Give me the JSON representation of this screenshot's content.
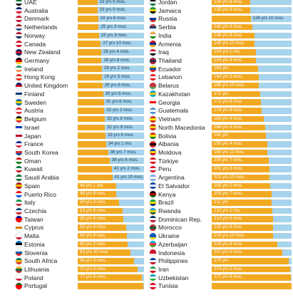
{
  "chart_data": {
    "type": "bar",
    "orientation": "horizontal",
    "value_unit": "years",
    "colors": {
      "progress": "#f2a922",
      "track": "#a7d3ec",
      "label": "#23425a"
    },
    "columns": [
      {
        "rows": [
          {
            "country": "UAE",
            "label": "23 yrs 9 mos.",
            "value": 23.75,
            "flag": [
              "#00732f",
              "#ffffff",
              "#000000"
            ]
          },
          {
            "country": "Australia",
            "label": "23 yrs 9 mos.",
            "value": 23.75,
            "flag": [
              "#012169",
              "#ffffff",
              "#e4002b"
            ]
          },
          {
            "country": "Denmark",
            "label": "24 yrs 6 mos.",
            "value": 24.5,
            "flag": [
              "#c8102e",
              "#ffffff",
              "#c8102e"
            ]
          },
          {
            "country": "Netherlands",
            "label": "25 yrs 3 mos.",
            "value": 25.25,
            "flag": [
              "#ae1c28",
              "#ffffff",
              "#21468b"
            ]
          },
          {
            "country": "Norway",
            "label": "25 yrs 9 mos.",
            "value": 25.75,
            "flag": [
              "#ba0c2f",
              "#ffffff",
              "#00205b"
            ]
          },
          {
            "country": "Canada",
            "label": "27 yrs 10 mos.",
            "value": 27.83,
            "flag": [
              "#d80621",
              "#ffffff",
              "#d80621"
            ]
          },
          {
            "country": "New Zealand",
            "label": "28 yrs 4 mos.",
            "value": 28.33,
            "flag": [
              "#012169",
              "#cc142b",
              "#012169"
            ]
          },
          {
            "country": "Germany",
            "label": "28 yrs 8 mos.",
            "value": 28.67,
            "flag": [
              "#000000",
              "#dd0000",
              "#ffce00"
            ]
          },
          {
            "country": "Ireland",
            "label": "29 yrs 2 mos.",
            "value": 29.17,
            "flag": [
              "#169b62",
              "#ffffff",
              "#ff883e"
            ]
          },
          {
            "country": "Hong Kong",
            "label": "29 yrs 5 mos.",
            "value": 29.42,
            "flag": [
              "#de2910",
              "#ffffff",
              "#de2910"
            ]
          },
          {
            "country": "United Kingdom",
            "label": "29 yrs 9 mos.",
            "value": 29.75,
            "flag": [
              "#012169",
              "#c8102e",
              "#ffffff"
            ]
          },
          {
            "country": "Finland",
            "label": "30 yrs 6 mos.",
            "value": 30.5,
            "flag": [
              "#ffffff",
              "#003580",
              "#ffffff"
            ]
          },
          {
            "country": "Sweden",
            "label": "31 yrs 6 mos.",
            "value": 31.5,
            "flag": [
              "#006aa7",
              "#fecc00",
              "#006aa7"
            ]
          },
          {
            "country": "Austria",
            "label": "32 yrs 2 mos.",
            "value": 32.17,
            "flag": [
              "#ed2939",
              "#ffffff",
              "#ed2939"
            ]
          },
          {
            "country": "Belgium",
            "label": "32 yrs 8 mos.",
            "value": 32.67,
            "flag": [
              "#000000",
              "#fae042",
              "#ed2939"
            ]
          },
          {
            "country": "Israel",
            "label": "32 yrs 9 mos.",
            "value": 32.75,
            "flag": [
              "#ffffff",
              "#0038b8",
              "#ffffff"
            ]
          },
          {
            "country": "Japan",
            "label": "33 yrs 6 mos.",
            "value": 33.5,
            "flag": [
              "#ffffff",
              "#bc002d",
              "#ffffff"
            ]
          },
          {
            "country": "France",
            "label": "34 yrs 1 mo.",
            "value": 34.08,
            "flag": [
              "#002395",
              "#ffffff",
              "#ed2939"
            ]
          },
          {
            "country": "South Korea",
            "label": "36 yrs 7 mos.",
            "value": 36.58,
            "flag": [
              "#ffffff",
              "#cd2e3a",
              "#0047a0"
            ]
          },
          {
            "country": "Oman",
            "label": "38 yrs 6 mos.",
            "value": 38.5,
            "flag": [
              "#db161b",
              "#ffffff",
              "#008000"
            ]
          },
          {
            "country": "Kuwait",
            "label": "41 yrs 2 mos.",
            "value": 41.17,
            "flag": [
              "#007a3d",
              "#ffffff",
              "#ce1126"
            ]
          },
          {
            "country": "Saudi Arabia",
            "label": "41 yrs 10 mos.",
            "value": 41.83,
            "flag": [
              "#006c35",
              "#ffffff",
              "#006c35"
            ]
          },
          {
            "country": "Spain",
            "label": "46 yrs 1 mo.",
            "value": 46.08,
            "flag": [
              "#aa151b",
              "#f1bf00",
              "#aa151b"
            ]
          },
          {
            "country": "Puerto Rico",
            "label": "46 yrs 8 mos.",
            "value": 46.67,
            "flag": [
              "#ed0000",
              "#ffffff",
              "#0050f0"
            ]
          },
          {
            "country": "Italy",
            "label": "50 yrs 3 mos.",
            "value": 50.25,
            "flag": [
              "#009246",
              "#ffffff",
              "#ce2b37"
            ]
          },
          {
            "country": "Czechia",
            "label": "53 yrs 9 mos.",
            "value": 53.75,
            "flag": [
              "#11457e",
              "#ffffff",
              "#d7141a"
            ]
          },
          {
            "country": "Taiwan",
            "label": "55 yrs 4 mos.",
            "value": 55.33,
            "flag": [
              "#000095",
              "#fe0000",
              "#fe0000"
            ]
          },
          {
            "country": "Cyprus",
            "label": "58 yrs 4 mos.",
            "value": 58.33,
            "flag": [
              "#ffffff",
              "#d57800",
              "#ffffff"
            ]
          },
          {
            "country": "Malta",
            "label": "59 yrs 8 mos.",
            "value": 59.67,
            "flag": [
              "#ffffff",
              "#ffffff",
              "#cf142b"
            ]
          },
          {
            "country": "Estonia",
            "label": "60 yrs 2 mos.",
            "value": 60.17,
            "flag": [
              "#0072ce",
              "#000000",
              "#ffffff"
            ]
          },
          {
            "country": "Slovenia",
            "label": "63 yrs 10 mos.",
            "value": 63.83,
            "flag": [
              "#ffffff",
              "#005da4",
              "#ed1c24"
            ]
          },
          {
            "country": "South Africa",
            "label": "68 yrs 3 mos.",
            "value": 68.25,
            "flag": [
              "#007a4d",
              "#ffb612",
              "#de3831"
            ]
          },
          {
            "country": "Lithuania",
            "label": "72 yrs 3 mos.",
            "value": 72.25,
            "flag": [
              "#fdb913",
              "#006a44",
              "#c1272d"
            ]
          },
          {
            "country": "Poland",
            "label": "77 yrs 9 mos.",
            "value": 77.75,
            "flag": [
              "#ffffff",
              "#ffffff",
              "#dc143c"
            ]
          },
          {
            "country": "Portugal",
            "label": "",
            "value": 79.0,
            "flag": [
              "#006600",
              "#ff0000",
              "#ff0000"
            ]
          }
        ]
      },
      {
        "rows": [
          {
            "country": "Jordan",
            "label": "134 yrs 8 mos.",
            "value": 134.67,
            "flag": [
              "#000000",
              "#ffffff",
              "#007a3d"
            ]
          },
          {
            "country": "Jamaica",
            "label": "135 yrs 3 mos.",
            "value": 135.25,
            "flag": [
              "#009b3a",
              "#fed100",
              "#000000"
            ]
          },
          {
            "country": "Russia",
            "label": "136 yrs 10 mos.",
            "value": 136.83,
            "flag": [
              "#ffffff",
              "#0039a6",
              "#d52b1e"
            ]
          },
          {
            "country": "Serbia",
            "label": "142 yrs 4 mos.",
            "value": 142.33,
            "flag": [
              "#c6363c",
              "#0c4076",
              "#ffffff"
            ]
          },
          {
            "country": "India",
            "label": "148 yrs 8 mos.",
            "value": 148.67,
            "flag": [
              "#ff9933",
              "#ffffff",
              "#138808"
            ]
          },
          {
            "country": "Armenia",
            "label": "148 yrs 11 mos.",
            "value": 148.92,
            "flag": [
              "#d90012",
              "#0033a0",
              "#f2a800"
            ]
          },
          {
            "country": "Iraq",
            "label": "154 yrs 1 mo.",
            "value": 154.08,
            "flag": [
              "#ce1126",
              "#ffffff",
              "#000000"
            ]
          },
          {
            "country": "Thailand",
            "label": "154 yrs 4 mos.",
            "value": 154.33,
            "flag": [
              "#a51931",
              "#2d2a4a",
              "#a51931"
            ]
          },
          {
            "country": "Ecuador",
            "label": "163 yrs",
            "value": 163.0,
            "flag": [
              "#ffdd00",
              "#034ea2",
              "#ed1c24"
            ]
          },
          {
            "country": "Lebanon",
            "label": "164 yrs 3 mos.",
            "value": 164.25,
            "flag": [
              "#ed1c24",
              "#ffffff",
              "#ed1c24"
            ]
          },
          {
            "country": "Belarus",
            "label": "165 yrs 10 mos.",
            "value": 165.83,
            "flag": [
              "#c8313e",
              "#c8313e",
              "#4aa657"
            ]
          },
          {
            "country": "Kazakhstan",
            "label": "171 yrs",
            "value": 171.0,
            "flag": [
              "#00afca",
              "#fec50c",
              "#00afca"
            ]
          },
          {
            "country": "Georgia",
            "label": "172 yrs 8 mos.",
            "value": 172.67,
            "flag": [
              "#ffffff",
              "#ff0000",
              "#ffffff"
            ]
          },
          {
            "country": "Guatemala",
            "label": "174 yrs 8 mos.",
            "value": 174.67,
            "flag": [
              "#4997d0",
              "#ffffff",
              "#4997d0"
            ]
          },
          {
            "country": "Vietnam",
            "label": "183 yrs 4 mos.",
            "value": 183.33,
            "flag": [
              "#da251d",
              "#ffff00",
              "#da251d"
            ]
          },
          {
            "country": "North Macedonia",
            "label": "188 yrs 4 mos.",
            "value": 188.33,
            "flag": [
              "#ce2028",
              "#f9d616",
              "#ce2028"
            ]
          },
          {
            "country": "Bolivia",
            "label": "191 yrs",
            "value": 191.0,
            "flag": [
              "#d52b1e",
              "#f9e300",
              "#007934"
            ]
          },
          {
            "country": "Albania",
            "label": "195 yrs 4 mos.",
            "value": 195.33,
            "flag": [
              "#e41e20",
              "#000000",
              "#e41e20"
            ]
          },
          {
            "country": "Moldova",
            "label": "195 yrs 11 mos.",
            "value": 195.92,
            "flag": [
              "#0046ae",
              "#ffd200",
              "#cc092f"
            ]
          },
          {
            "country": "Türkiye",
            "label": "200 yrs 7 mos.",
            "value": 200.58,
            "flag": [
              "#e30a17",
              "#ffffff",
              "#e30a17"
            ]
          },
          {
            "country": "Peru",
            "label": "201 yrs 3 mos.",
            "value": 201.25,
            "flag": [
              "#d91023",
              "#ffffff",
              "#d91023"
            ]
          },
          {
            "country": "Argentina",
            "label": "201 yrs 10 mos.",
            "value": 201.83,
            "flag": [
              "#74acdf",
              "#ffffff",
              "#74acdf"
            ]
          },
          {
            "country": "El Salvador",
            "label": "205 yrs 2 mos.",
            "value": 205.17,
            "flag": [
              "#0047ab",
              "#ffffff",
              "#0047ab"
            ]
          },
          {
            "country": "Kenya",
            "label": "209 yrs 7 mos.",
            "value": 209.58,
            "flag": [
              "#000000",
              "#bb0000",
              "#006600"
            ]
          },
          {
            "country": "Brazil",
            "label": "211 yrs",
            "value": 211.0,
            "flag": [
              "#009c3b",
              "#ffdf00",
              "#002776"
            ]
          },
          {
            "country": "Rwanda",
            "label": "212 yrs 1 mo.",
            "value": 212.08,
            "flag": [
              "#00a1de",
              "#fad201",
              "#20603d"
            ]
          },
          {
            "country": "Dominican Rep.",
            "label": "214 yrs 5 mos.",
            "value": 214.42,
            "flag": [
              "#002d62",
              "#ffffff",
              "#ce1126"
            ]
          },
          {
            "country": "Morocco",
            "label": "215 yrs 9 mos.",
            "value": 215.75,
            "flag": [
              "#c1272d",
              "#006233",
              "#c1272d"
            ]
          },
          {
            "country": "Ukraine",
            "label": "215 yrs 10 mos.",
            "value": 215.83,
            "flag": [
              "#0057b7",
              "#0057b7",
              "#ffd700"
            ]
          },
          {
            "country": "Azerbaijan",
            "label": "228 yrs 8 mos.",
            "value": 228.67,
            "flag": [
              "#00b5e2",
              "#ef3340",
              "#509e2f"
            ]
          },
          {
            "country": "Indonesia",
            "label": "247 yrs 5 mos.",
            "value": 247.42,
            "flag": [
              "#ce1126",
              "#ce1126",
              "#ffffff"
            ]
          },
          {
            "country": "Philippines",
            "label": "270 yrs",
            "value": 270.0,
            "flag": [
              "#0038a8",
              "#ffffff",
              "#ce1126"
            ]
          },
          {
            "country": "Iran",
            "label": "274 yrs 5 mos.",
            "value": 274.42,
            "flag": [
              "#239f40",
              "#ffffff",
              "#da0000"
            ]
          },
          {
            "country": "Uzbekistan",
            "label": "277 yrs 8 mos.",
            "value": 277.67,
            "flag": [
              "#0099b5",
              "#ffffff",
              "#1eb53a"
            ]
          },
          {
            "country": "Tunisia",
            "label": "",
            "value": 280.0,
            "flag": [
              "#e70013",
              "#ffffff",
              "#e70013"
            ]
          }
        ]
      }
    ]
  }
}
